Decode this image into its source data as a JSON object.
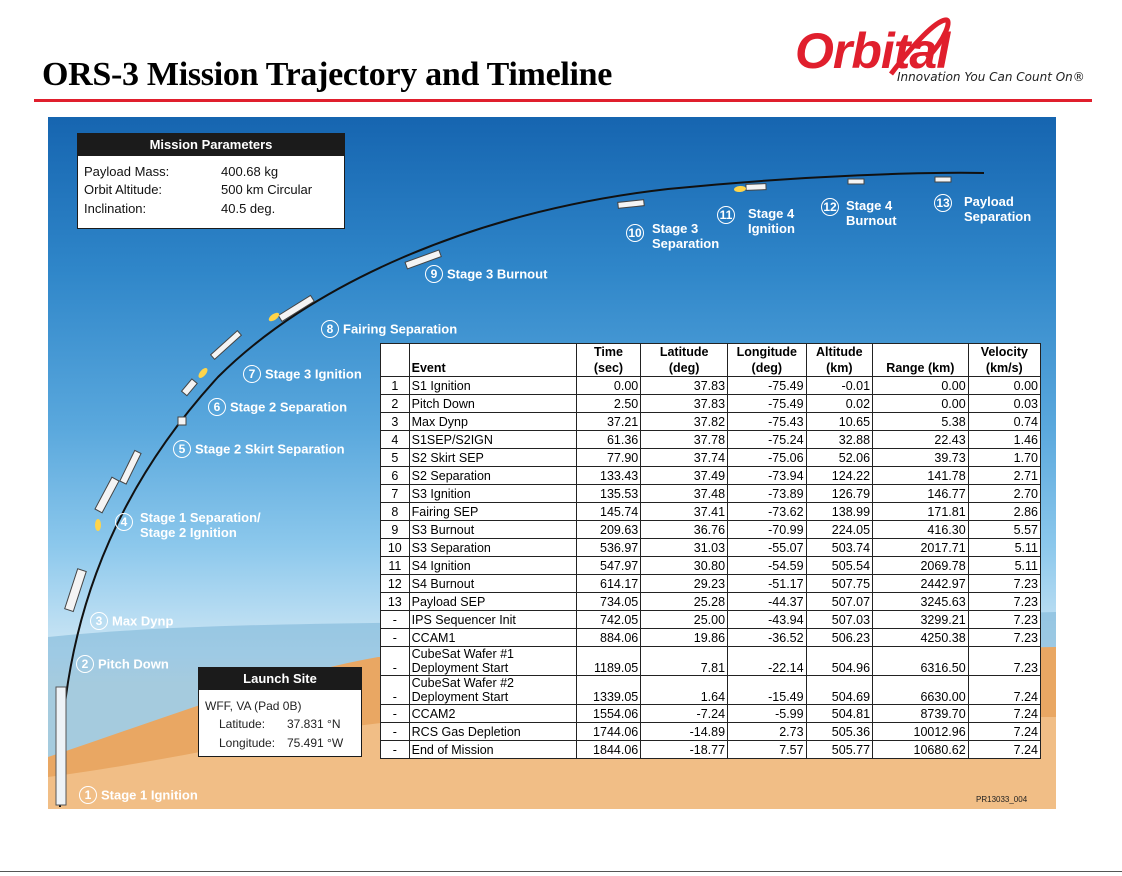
{
  "page": {
    "title": "ORS-3 Mission Trajectory and Timeline",
    "footer_code": "PR13033_004"
  },
  "logo": {
    "word": "Orbital",
    "tagline": "Innovation You Can Count On®"
  },
  "mission_parameters": {
    "title": "Mission Parameters",
    "rows": [
      {
        "label": "Payload Mass:",
        "value": "400.68 kg"
      },
      {
        "label": "Orbit Altitude:",
        "value": "500 km Circular"
      },
      {
        "label": "Inclination:",
        "value": "40.5 deg."
      }
    ]
  },
  "launch_site": {
    "title": "Launch Site",
    "site": "WFF, VA (Pad 0B)",
    "lat_label": "Latitude:",
    "lat_value": "37.831 °N",
    "lon_label": "Longitude:",
    "lon_value": "75.491 °W"
  },
  "events": [
    {
      "n": "1",
      "line1": "Stage 1 Ignition",
      "line2": ""
    },
    {
      "n": "2",
      "line1": "Pitch Down",
      "line2": ""
    },
    {
      "n": "3",
      "line1": "Max Dynp",
      "line2": ""
    },
    {
      "n": "4",
      "line1": "Stage 1 Separation/",
      "line2": "Stage 2 Ignition"
    },
    {
      "n": "5",
      "line1": "Stage 2 Skirt Separation",
      "line2": ""
    },
    {
      "n": "6",
      "line1": "Stage 2 Separation",
      "line2": ""
    },
    {
      "n": "7",
      "line1": "Stage 3 Ignition",
      "line2": ""
    },
    {
      "n": "8",
      "line1": "Fairing Separation",
      "line2": ""
    },
    {
      "n": "9",
      "line1": "Stage 3 Burnout",
      "line2": ""
    },
    {
      "n": "10",
      "line1": "Stage 3",
      "line2": "Separation"
    },
    {
      "n": "11",
      "line1": "Stage 4",
      "line2": "Ignition"
    },
    {
      "n": "12",
      "line1": "Stage 4",
      "line2": "Burnout"
    },
    {
      "n": "13",
      "line1": "Payload",
      "line2": "Separation"
    }
  ],
  "table": {
    "headers": [
      {
        "l1": "",
        "l2": ""
      },
      {
        "l1": "",
        "l2": "Event"
      },
      {
        "l1": "Time",
        "l2": "(sec)"
      },
      {
        "l1": "Latitude",
        "l2": "(deg)"
      },
      {
        "l1": "Longitude",
        "l2": "(deg)"
      },
      {
        "l1": "Altitude",
        "l2": "(km)"
      },
      {
        "l1": "",
        "l2": "Range (km)"
      },
      {
        "l1": "Velocity",
        "l2": "(km/s)"
      }
    ],
    "rows": [
      {
        "n": "1",
        "event": "S1 Ignition",
        "event2": "",
        "time": "0.00",
        "lat": "37.83",
        "lon": "-75.49",
        "alt": "-0.01",
        "range": "0.00",
        "vel": "0.00"
      },
      {
        "n": "2",
        "event": "Pitch Down",
        "event2": "",
        "time": "2.50",
        "lat": "37.83",
        "lon": "-75.49",
        "alt": "0.02",
        "range": "0.00",
        "vel": "0.03"
      },
      {
        "n": "3",
        "event": "Max Dynp",
        "event2": "",
        "time": "37.21",
        "lat": "37.82",
        "lon": "-75.43",
        "alt": "10.65",
        "range": "5.38",
        "vel": "0.74"
      },
      {
        "n": "4",
        "event": "S1SEP/S2IGN",
        "event2": "",
        "time": "61.36",
        "lat": "37.78",
        "lon": "-75.24",
        "alt": "32.88",
        "range": "22.43",
        "vel": "1.46"
      },
      {
        "n": "5",
        "event": "S2 Skirt SEP",
        "event2": "",
        "time": "77.90",
        "lat": "37.74",
        "lon": "-75.06",
        "alt": "52.06",
        "range": "39.73",
        "vel": "1.70"
      },
      {
        "n": "6",
        "event": "S2 Separation",
        "event2": "",
        "time": "133.43",
        "lat": "37.49",
        "lon": "-73.94",
        "alt": "124.22",
        "range": "141.78",
        "vel": "2.71"
      },
      {
        "n": "7",
        "event": "S3 Ignition",
        "event2": "",
        "time": "135.53",
        "lat": "37.48",
        "lon": "-73.89",
        "alt": "126.79",
        "range": "146.77",
        "vel": "2.70"
      },
      {
        "n": "8",
        "event": "Fairing SEP",
        "event2": "",
        "time": "145.74",
        "lat": "37.41",
        "lon": "-73.62",
        "alt": "138.99",
        "range": "171.81",
        "vel": "2.86"
      },
      {
        "n": "9",
        "event": "S3 Burnout",
        "event2": "",
        "time": "209.63",
        "lat": "36.76",
        "lon": "-70.99",
        "alt": "224.05",
        "range": "416.30",
        "vel": "5.57"
      },
      {
        "n": "10",
        "event": "S3 Separation",
        "event2": "",
        "time": "536.97",
        "lat": "31.03",
        "lon": "-55.07",
        "alt": "503.74",
        "range": "2017.71",
        "vel": "5.11"
      },
      {
        "n": "11",
        "event": "S4 Ignition",
        "event2": "",
        "time": "547.97",
        "lat": "30.80",
        "lon": "-54.59",
        "alt": "505.54",
        "range": "2069.78",
        "vel": "5.11"
      },
      {
        "n": "12",
        "event": "S4 Burnout",
        "event2": "",
        "time": "614.17",
        "lat": "29.23",
        "lon": "-51.17",
        "alt": "507.75",
        "range": "2442.97",
        "vel": "7.23"
      },
      {
        "n": "13",
        "event": "Payload SEP",
        "event2": "",
        "time": "734.05",
        "lat": "25.28",
        "lon": "-44.37",
        "alt": "507.07",
        "range": "3245.63",
        "vel": "7.23"
      },
      {
        "n": "-",
        "event": "IPS Sequencer Init",
        "event2": "",
        "time": "742.05",
        "lat": "25.00",
        "lon": "-43.94",
        "alt": "507.03",
        "range": "3299.21",
        "vel": "7.23"
      },
      {
        "n": "-",
        "event": "CCAM1",
        "event2": "",
        "time": "884.06",
        "lat": "19.86",
        "lon": "-36.52",
        "alt": "506.23",
        "range": "4250.38",
        "vel": "7.23"
      },
      {
        "n": "-",
        "event": "CubeSat Wafer #1",
        "event2": "Deployment Start",
        "time": "1189.05",
        "lat": "7.81",
        "lon": "-22.14",
        "alt": "504.96",
        "range": "6316.50",
        "vel": "7.23"
      },
      {
        "n": "-",
        "event": "CubeSat Wafer #2",
        "event2": "Deployment Start",
        "time": "1339.05",
        "lat": "1.64",
        "lon": "-15.49",
        "alt": "504.69",
        "range": "6630.00",
        "vel": "7.24"
      },
      {
        "n": "-",
        "event": "CCAM2",
        "event2": "",
        "time": "1554.06",
        "lat": "-7.24",
        "lon": "-5.99",
        "alt": "504.81",
        "range": "8739.70",
        "vel": "7.24"
      },
      {
        "n": "-",
        "event": "RCS Gas Depletion",
        "event2": "",
        "time": "1744.06",
        "lat": "-14.89",
        "lon": "2.73",
        "alt": "505.36",
        "range": "10012.96",
        "vel": "7.24"
      },
      {
        "n": "-",
        "event": "End of Mission",
        "event2": "",
        "time": "1844.06",
        "lat": "-18.77",
        "lon": "7.57",
        "alt": "505.77",
        "range": "10680.62",
        "vel": "7.24"
      }
    ]
  },
  "colors": {
    "brand_red": "#e01f2d",
    "sky_top": "#1665b0",
    "sky_bottom": "#cfe7f4",
    "sand": "#e9a763",
    "label_text": "#ffffff"
  }
}
